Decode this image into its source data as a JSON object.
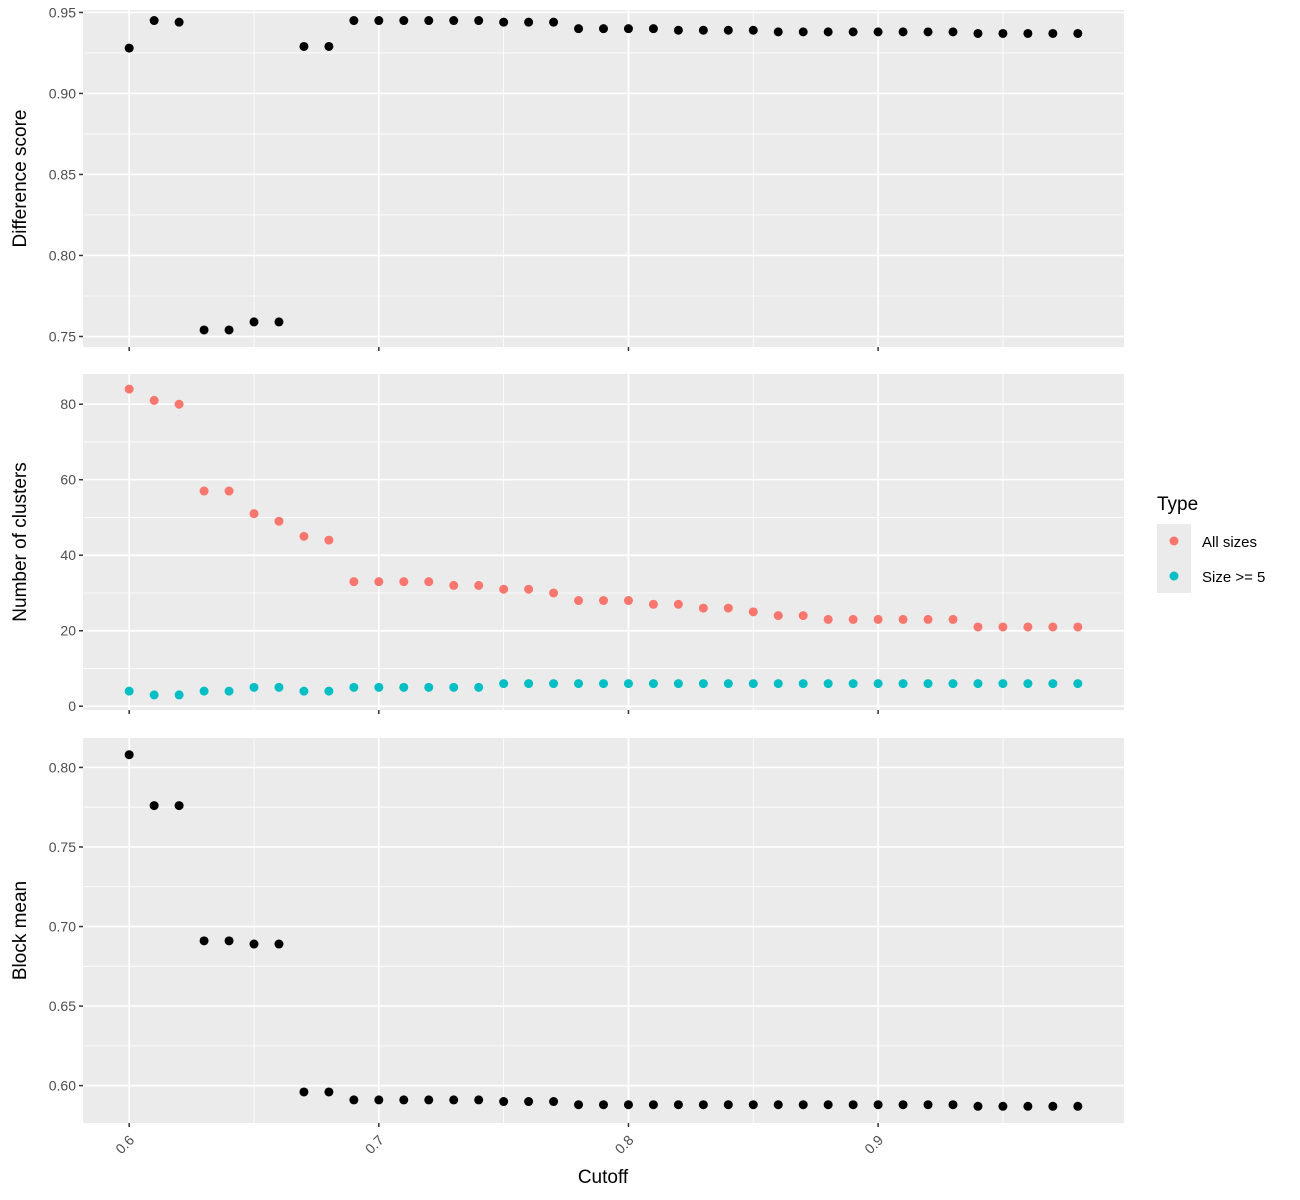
{
  "chart_data": {
    "type": "scatter",
    "xlabel": "Cutoff",
    "x_ticks": [
      0.6,
      0.7,
      0.8,
      0.9
    ],
    "x_tick_labels": [
      "0.6",
      "0.7",
      "0.8",
      "0.9"
    ],
    "xlim": [
      0.5815,
      0.9985
    ],
    "x": [
      0.6,
      0.61,
      0.62,
      0.63,
      0.64,
      0.65,
      0.66,
      0.67,
      0.68,
      0.69,
      0.7,
      0.71,
      0.72,
      0.73,
      0.74,
      0.75,
      0.76,
      0.77,
      0.78,
      0.79,
      0.8,
      0.81,
      0.82,
      0.83,
      0.84,
      0.85,
      0.86,
      0.87,
      0.88,
      0.89,
      0.9,
      0.91,
      0.92,
      0.93,
      0.94,
      0.95,
      0.96,
      0.97,
      0.98
    ],
    "grid": true,
    "panels": [
      {
        "ylabel": "Difference score",
        "ylim": [
          0.7435,
          0.9515
        ],
        "y_ticks": [
          0.75,
          0.8,
          0.85,
          0.9,
          0.95
        ],
        "y_tick_labels": [
          "0.75",
          "0.80",
          "0.85",
          "0.90",
          "0.95"
        ],
        "series": [
          {
            "color": "#000000",
            "values": [
              0.928,
              0.945,
              0.944,
              0.754,
              0.754,
              0.759,
              0.759,
              0.929,
              0.929,
              0.945,
              0.945,
              0.945,
              0.945,
              0.945,
              0.945,
              0.944,
              0.944,
              0.944,
              0.94,
              0.94,
              0.94,
              0.94,
              0.939,
              0.939,
              0.939,
              0.939,
              0.938,
              0.938,
              0.938,
              0.938,
              0.938,
              0.938,
              0.938,
              0.938,
              0.937,
              0.937,
              0.937,
              0.937,
              0.937
            ]
          }
        ]
      },
      {
        "ylabel": "Number of clusters",
        "ylim": [
          -1,
          88
        ],
        "y_ticks": [
          0,
          20,
          40,
          60,
          80
        ],
        "y_tick_labels": [
          "0",
          "20",
          "40",
          "60",
          "80"
        ],
        "series": [
          {
            "name": "All sizes",
            "color": "#F8766D",
            "values": [
              84,
              81,
              80,
              57,
              57,
              51,
              49,
              45,
              44,
              33,
              33,
              33,
              33,
              32,
              32,
              31,
              31,
              30,
              28,
              28,
              28,
              27,
              27,
              26,
              26,
              25,
              24,
              24,
              23,
              23,
              23,
              23,
              23,
              23,
              21,
              21,
              21,
              21,
              21
            ]
          },
          {
            "name": "Size >= 5",
            "color": "#00BFC4",
            "values": [
              4,
              3,
              3,
              4,
              4,
              5,
              5,
              4,
              4,
              5,
              5,
              5,
              5,
              5,
              5,
              6,
              6,
              6,
              6,
              6,
              6,
              6,
              6,
              6,
              6,
              6,
              6,
              6,
              6,
              6,
              6,
              6,
              6,
              6,
              6,
              6,
              6,
              6,
              6
            ]
          }
        ]
      },
      {
        "ylabel": "Block mean",
        "ylim": [
          0.5765,
          0.8185
        ],
        "y_ticks": [
          0.6,
          0.65,
          0.7,
          0.75,
          0.8
        ],
        "y_tick_labels": [
          "0.60",
          "0.65",
          "0.70",
          "0.75",
          "0.80"
        ],
        "series": [
          {
            "color": "#000000",
            "values": [
              0.808,
              0.776,
              0.776,
              0.691,
              0.691,
              0.689,
              0.689,
              0.596,
              0.596,
              0.591,
              0.591,
              0.591,
              0.591,
              0.591,
              0.591,
              0.59,
              0.59,
              0.59,
              0.588,
              0.588,
              0.588,
              0.588,
              0.588,
              0.588,
              0.588,
              0.588,
              0.588,
              0.588,
              0.588,
              0.588,
              0.588,
              0.588,
              0.588,
              0.588,
              0.587,
              0.587,
              0.587,
              0.587,
              0.587
            ]
          }
        ]
      }
    ],
    "legend": {
      "title": "Type",
      "position": "right",
      "items": [
        {
          "label": "All sizes",
          "color": "#F8766D"
        },
        {
          "label": "Size >= 5",
          "color": "#00BFC4"
        }
      ]
    }
  }
}
